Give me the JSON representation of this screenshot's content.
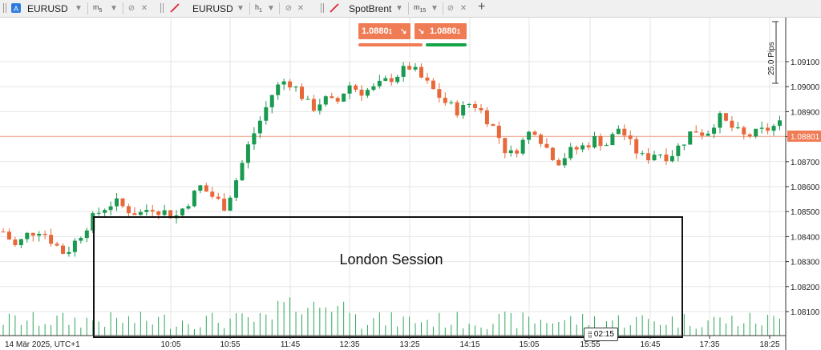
{
  "tabs": [
    {
      "symbol": "EURUSD",
      "timeframe": "m",
      "timeframe_sub": "5",
      "icon": "chart-a-icon"
    },
    {
      "symbol": "EURUSD",
      "timeframe": "h",
      "timeframe_sub": "1",
      "icon": "drawing-line-icon"
    },
    {
      "symbol": "SpotBrent",
      "timeframe": "m",
      "timeframe_sub": "15",
      "icon": "drawing-line-icon"
    }
  ],
  "add_tab_label": "+",
  "trade": {
    "sell_price": "1.0880",
    "sell_price_small": "1",
    "buy_price": "1.0880",
    "buy_price_small": "1",
    "sell_color": "#f07c56",
    "buy_color": "#16a34a"
  },
  "session_label": "London Session",
  "pips_ruler_label": "25.0 Pips",
  "current_price_label": "1.08801",
  "timer_label": "02:15",
  "colors": {
    "up": "#1a9a50",
    "down": "#e8683a",
    "price_line": "#f4a48a",
    "grid": "#e6e6e6"
  },
  "chart_data": {
    "type": "candlestick",
    "symbol": "EURUSD",
    "timeframe": "m5",
    "date_label": "14 Mär 2025, UTC+1",
    "x_tick_labels": [
      "10:05",
      "10:55",
      "11:45",
      "12:35",
      "13:25",
      "14:15",
      "15:05",
      "15:55",
      "16:45",
      "17:35",
      "18:25"
    ],
    "y_tick_labels": [
      "1.08100",
      "1.08200",
      "1.08300",
      "1.08400",
      "1.08500",
      "1.08600",
      "1.08700",
      "1.08800",
      "1.08900",
      "1.09000",
      "1.09100"
    ],
    "ylim": [
      1.0806,
      1.0918
    ],
    "current_price": 1.08801,
    "session_range": {
      "label": "London Session",
      "high": 1.0848
    },
    "close_path": [
      1.0842,
      1.0836,
      1.0841,
      1.0843,
      1.0838,
      1.0833,
      1.0839,
      1.0846,
      1.0851,
      1.0854,
      1.0851,
      1.0849,
      1.0852,
      1.085,
      1.0848,
      1.0854,
      1.086,
      1.0856,
      1.0852,
      1.0864,
      1.0878,
      1.0888,
      1.0899,
      1.0903,
      1.0898,
      1.0891,
      1.0895,
      1.0893,
      1.0901,
      1.0898,
      1.0899,
      1.0902,
      1.0905,
      1.0908,
      1.0903,
      1.0898,
      1.0893,
      1.089,
      1.0894,
      1.0889,
      1.0882,
      1.0872,
      1.0877,
      1.0884,
      1.0876,
      1.087,
      1.0874,
      1.0876,
      1.0879,
      1.0877,
      1.0884,
      1.0876,
      1.0871,
      1.0874,
      1.0872,
      1.0877,
      1.0883,
      1.0881,
      1.0888,
      1.0884,
      1.088,
      1.0881,
      1.0883,
      1.0885
    ]
  }
}
